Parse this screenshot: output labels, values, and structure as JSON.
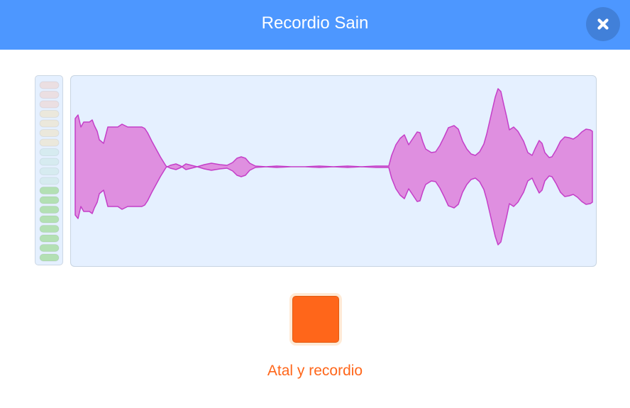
{
  "dialog": {
    "title": "Recordio Sain",
    "close_icon": "close-x-icon"
  },
  "recorder": {
    "stop_button_icon": "stop-square-icon",
    "status_label": "Atal y recordio"
  },
  "level_meter": {
    "segments": 19,
    "lit_segments": 8
  },
  "colors": {
    "header": "#4d97ff",
    "accent_orange": "#ff661a",
    "panel_bg": "#e5f0ff",
    "waveform_fill": "#df8fe0",
    "waveform_stroke": "#c43fc8",
    "meter_lit": "#b3e0b4",
    "meter_mid": "#d6ebf0",
    "meter_high_yellow": "#ebe8dc",
    "meter_high_red": "#ebdfe2"
  }
}
